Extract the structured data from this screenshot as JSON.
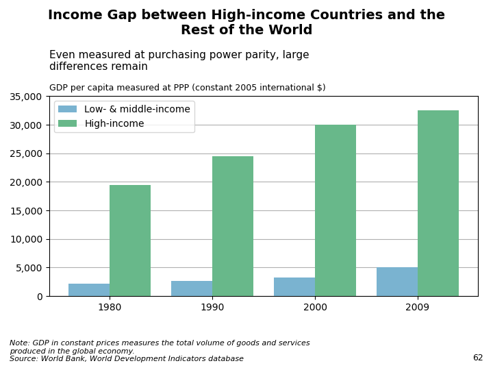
{
  "chart_data": {
    "type": "bar",
    "title": "Income Gap between High-income Countries and the\nRest of the World",
    "subtitle": "Even measured at purchasing power parity, large\ndifferences remain",
    "y_label": "GDP per capita measured at PPP (constant 2005 international $)",
    "categories": [
      "1980",
      "1990",
      "2000",
      "2009"
    ],
    "series": [
      {
        "name": "Low- & middle-income",
        "color": "#7ab3d0",
        "values": [
          2200,
          2700,
          3200,
          5000
        ]
      },
      {
        "name": "High-income",
        "color": "#68b88a",
        "values": [
          19500,
          24500,
          30000,
          32500
        ]
      }
    ],
    "ylim": [
      0,
      35000
    ],
    "yticks": [
      0,
      {
        "value": 5000,
        "label": "5,000"
      },
      {
        "value": 10000,
        "label": "10,000"
      },
      {
        "value": 15000,
        "label": "15,000"
      },
      {
        "value": 20000,
        "label": "20,000"
      },
      {
        "value": 25000,
        "label": "25,000"
      },
      {
        "value": 30000,
        "label": "30,000"
      },
      {
        "value": 35000,
        "label": "35,000"
      }
    ],
    "grid": true,
    "legend": "upper left",
    "annotations": [
      "Note: GDP in constant prices measures the total volume of goods and services\nproduced in the global economy.\nSource: World Bank, World Development Indicators database",
      "62"
    ]
  }
}
